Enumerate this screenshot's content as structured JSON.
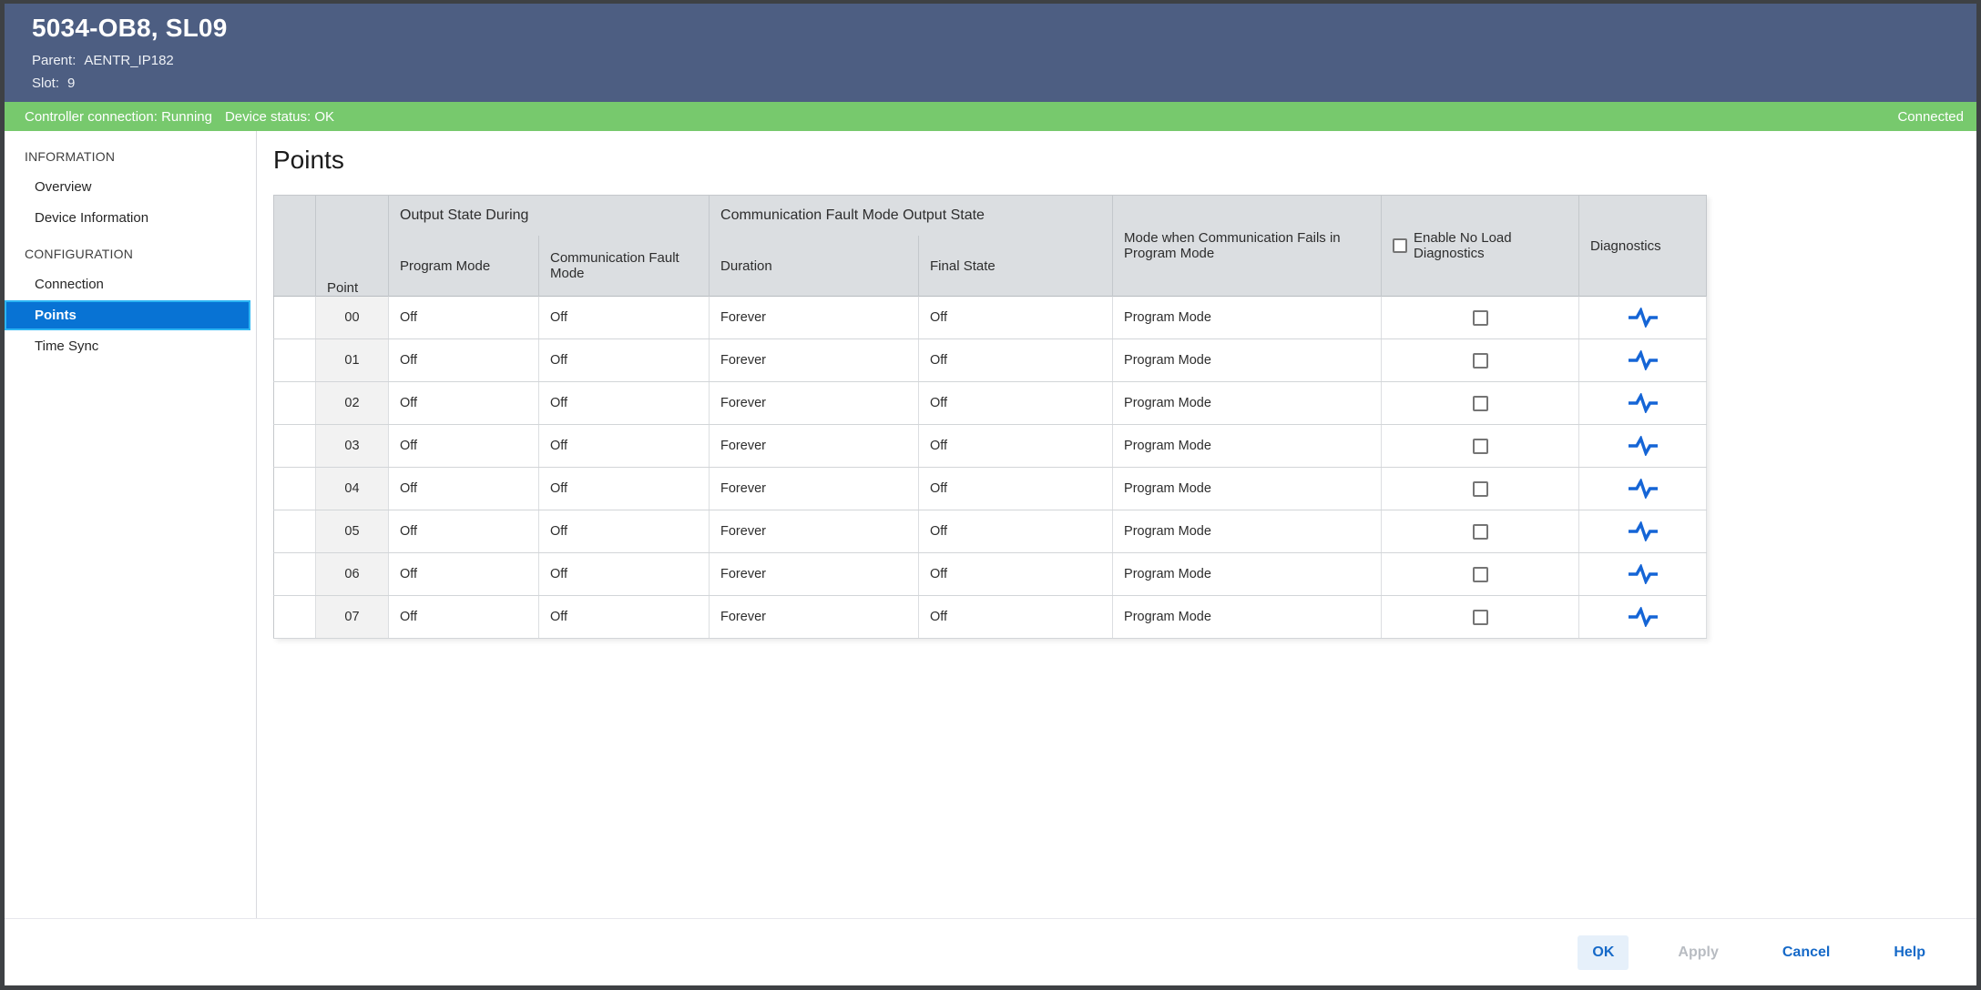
{
  "window": {
    "title": "5034-OB8, SL09",
    "parent": {
      "label": "Parent:",
      "value": "AENTR_IP182"
    },
    "slot": {
      "label": "Slot:",
      "value": "9"
    }
  },
  "status_bar": {
    "controller_connection": "Controller connection: Running",
    "device_status": "Device status: OK",
    "connection_state": "Connected"
  },
  "sidebar": {
    "sections": [
      {
        "title": "INFORMATION",
        "items": [
          {
            "label": "Overview",
            "selected": false
          },
          {
            "label": "Device Information",
            "selected": false
          }
        ]
      },
      {
        "title": "CONFIGURATION",
        "items": [
          {
            "label": "Connection",
            "selected": false
          },
          {
            "label": "Points",
            "selected": true
          },
          {
            "label": "Time Sync",
            "selected": false
          }
        ]
      }
    ]
  },
  "main": {
    "title": "Points",
    "table": {
      "headers": {
        "point": "Point",
        "output_state_during": "Output State During",
        "program_mode": "Program Mode",
        "communication_fault_mode": "Communication Fault Mode",
        "comm_fault_mode_output_state": "Communication Fault Mode Output State",
        "duration": "Duration",
        "final_state": "Final State",
        "mode_when_comm_fails": "Mode when Communication Fails in Program Mode",
        "enable_no_load_diagnostics": "Enable No Load Diagnostics",
        "diagnostics": "Diagnostics"
      },
      "header_enable_no_load_checked": false,
      "rows": [
        {
          "point": "00",
          "program_mode": "Off",
          "communication_fault_mode": "Off",
          "duration": "Forever",
          "final_state": "Off",
          "mode_when_comm_fails": "Program Mode",
          "no_load_checked": false
        },
        {
          "point": "01",
          "program_mode": "Off",
          "communication_fault_mode": "Off",
          "duration": "Forever",
          "final_state": "Off",
          "mode_when_comm_fails": "Program Mode",
          "no_load_checked": false
        },
        {
          "point": "02",
          "program_mode": "Off",
          "communication_fault_mode": "Off",
          "duration": "Forever",
          "final_state": "Off",
          "mode_when_comm_fails": "Program Mode",
          "no_load_checked": false
        },
        {
          "point": "03",
          "program_mode": "Off",
          "communication_fault_mode": "Off",
          "duration": "Forever",
          "final_state": "Off",
          "mode_when_comm_fails": "Program Mode",
          "no_load_checked": false
        },
        {
          "point": "04",
          "program_mode": "Off",
          "communication_fault_mode": "Off",
          "duration": "Forever",
          "final_state": "Off",
          "mode_when_comm_fails": "Program Mode",
          "no_load_checked": false
        },
        {
          "point": "05",
          "program_mode": "Off",
          "communication_fault_mode": "Off",
          "duration": "Forever",
          "final_state": "Off",
          "mode_when_comm_fails": "Program Mode",
          "no_load_checked": false
        },
        {
          "point": "06",
          "program_mode": "Off",
          "communication_fault_mode": "Off",
          "duration": "Forever",
          "final_state": "Off",
          "mode_when_comm_fails": "Program Mode",
          "no_load_checked": false
        },
        {
          "point": "07",
          "program_mode": "Off",
          "communication_fault_mode": "Off",
          "duration": "Forever",
          "final_state": "Off",
          "mode_when_comm_fails": "Program Mode",
          "no_load_checked": false
        }
      ]
    }
  },
  "footer": {
    "buttons": [
      {
        "label": "OK",
        "style": "primary",
        "enabled": true
      },
      {
        "label": "Apply",
        "style": "text",
        "enabled": false
      },
      {
        "label": "Cancel",
        "style": "text",
        "enabled": true
      },
      {
        "label": "Help",
        "style": "text",
        "enabled": true
      }
    ]
  },
  "colors": {
    "window_border": "#3e4144",
    "header_bg": "#4d5e82",
    "status_green": "#77c96d",
    "selection_blue": "#0873d4",
    "selection_border": "#2cb5f4",
    "table_header_bg": "#dbdee1",
    "accent_blue": "#1569c8",
    "primary_btn_bg": "#e6f0fa",
    "disabled_text": "#b8bcc2",
    "pulse_blue": "#1565d6"
  }
}
